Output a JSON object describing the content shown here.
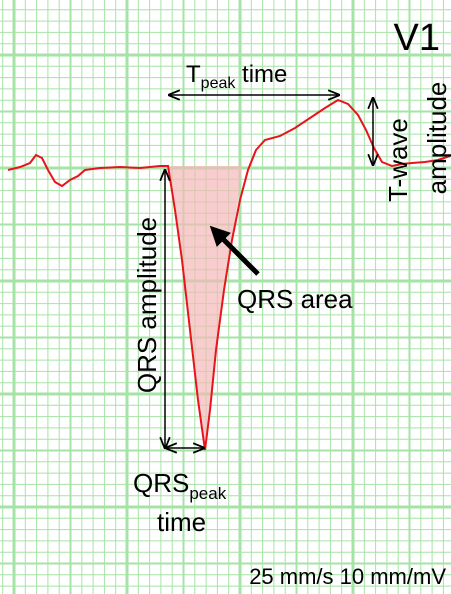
{
  "lead": "V1",
  "t_peak_time": {
    "main": "T",
    "sub": "peak",
    "rest": " time"
  },
  "t_wave_amplitude": {
    "line1": "T-wave",
    "line2": "amplitude"
  },
  "qrs_amplitude": "QRS amplitude",
  "qrs_area": "QRS area",
  "qrs_peak_time": {
    "main": "QRS",
    "sub": "peak",
    "line2": "time"
  },
  "calibration": "25 mm/s 10 mm/mV"
}
